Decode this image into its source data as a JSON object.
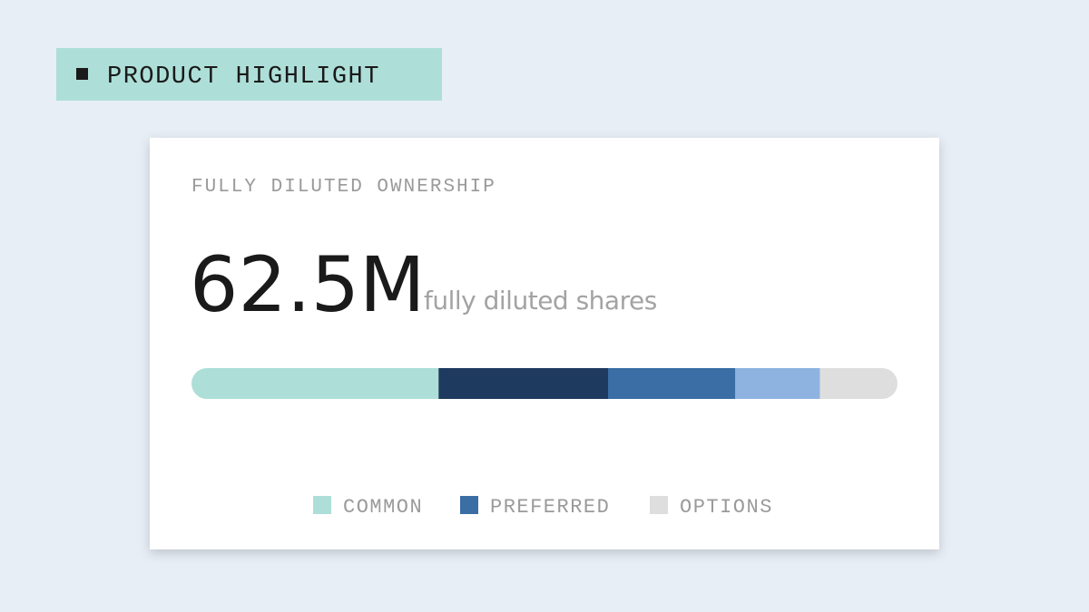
{
  "badge": {
    "text": "PRODUCT HIGHLIGHT"
  },
  "card": {
    "title": "FULLY DILUTED OWNERSHIP",
    "metric": "62.5M",
    "metric_caption": "fully diluted shares",
    "bar": {
      "type": "stacked-bar",
      "segments": [
        {
          "color": "#addfd8",
          "value": 35
        },
        {
          "color": "#1f3a5f",
          "value": 24
        },
        {
          "color": "#3a6ea5",
          "value": 18
        },
        {
          "color": "#8fb3e0",
          "value": 12
        },
        {
          "color": "#dedede",
          "value": 11
        }
      ]
    },
    "legend": [
      {
        "label": "COMMON",
        "color": "#addfd8"
      },
      {
        "label": "PREFERRED",
        "color": "#3a6ea5"
      },
      {
        "label": "OPTIONS",
        "color": "#dedede"
      }
    ]
  }
}
